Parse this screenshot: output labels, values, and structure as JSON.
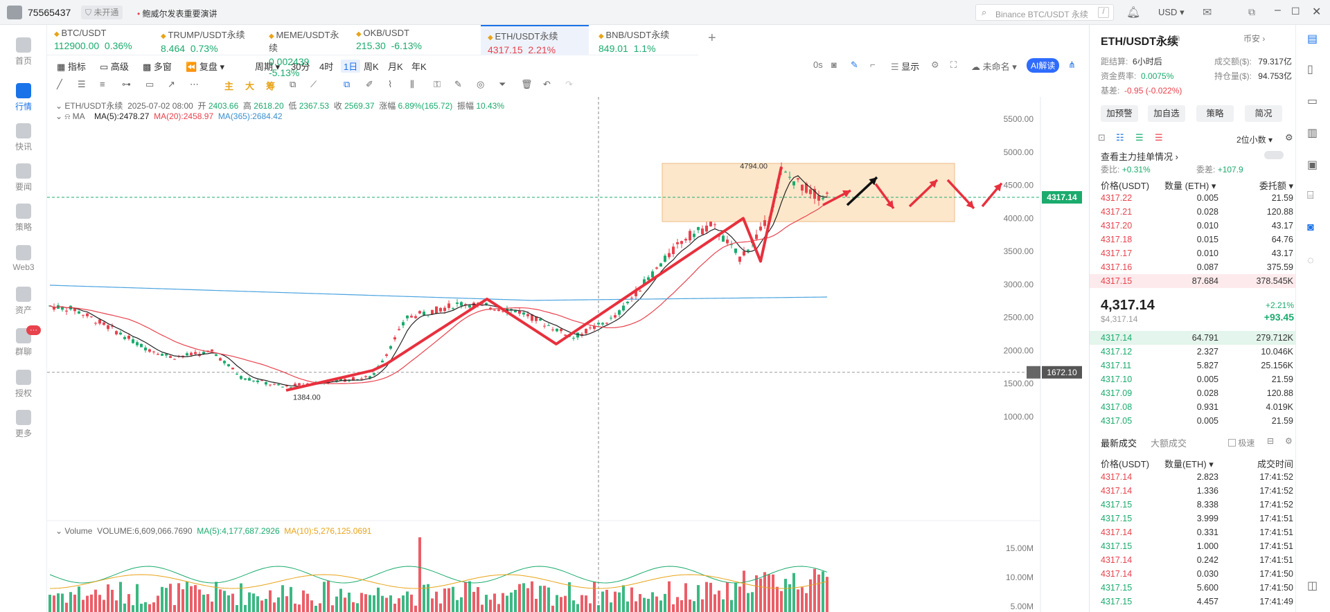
{
  "app": {
    "user_id": "75565437",
    "status": "未开通",
    "notice": "鲍威尔发表重要演讲",
    "search_placeholder": "Binance BTC/USDT 永续",
    "search_shortcut": "/",
    "currency": "USD"
  },
  "nav": [
    {
      "label": "首页",
      "icon": "home-icon"
    },
    {
      "label": "行情",
      "icon": "market-icon"
    },
    {
      "label": "快讯",
      "icon": "news-icon"
    },
    {
      "label": "要闻",
      "icon": "headline-icon"
    },
    {
      "label": "策略",
      "icon": "robot-icon"
    },
    {
      "label": "Web3",
      "icon": "web3-icon"
    },
    {
      "label": "资产",
      "icon": "wallet-icon"
    },
    {
      "label": "群聊",
      "icon": "chat-icon",
      "badge": "···"
    },
    {
      "label": "授权",
      "icon": "auth-icon"
    },
    {
      "label": "更多",
      "icon": "more-icon"
    }
  ],
  "tabs": [
    {
      "name": "BTC/USDT",
      "price": "112900.00",
      "change": "0.36%",
      "dir": "up"
    },
    {
      "name": "TRUMP/USDT永续",
      "price": "8.464",
      "change": "0.73%",
      "dir": "up"
    },
    {
      "name": "MEME/USDT永续",
      "price": "0.002439",
      "change": "-5.13%",
      "dir": "up"
    },
    {
      "name": "OKB/USDT",
      "price": "215.30",
      "change": "-6.13%",
      "dir": "up"
    },
    {
      "name": "ETH/USDT永续",
      "price": "4317.15",
      "change": "2.21%",
      "dir": "down",
      "active": true
    },
    {
      "name": "BNB/USDT永续",
      "price": "849.01",
      "change": "1.1%",
      "dir": "up"
    }
  ],
  "toolbar": {
    "indicator": "指标",
    "advanced": "高级",
    "multi": "多窗",
    "replay": "复盘",
    "period": "周期",
    "intervals": [
      "30分",
      "4时",
      "1日",
      "周K",
      "月K",
      "年K"
    ],
    "active_interval": "1日",
    "countdown": "0s",
    "display": "显示",
    "unnamed": "未命名",
    "ai": "AI解读"
  },
  "drawbar": {
    "labels": [
      "主",
      "大",
      "筹"
    ]
  },
  "legend": {
    "symbol": "ETH/USDT永续",
    "date": "2025-07-02 08:00",
    "open_label": "开",
    "open": "2403.66",
    "high_label": "高",
    "high": "2618.20",
    "low_label": "低",
    "low": "2367.53",
    "close_label": "收",
    "close": "2569.37",
    "chg_label": "涨幅",
    "chg": "6.89%(165.72)",
    "amp_label": "振幅",
    "amp": "10.43%",
    "ma_label": "MA",
    "ma5": "MA(5):2478.27",
    "ma20": "MA(20):2458.97",
    "ma365": "MA(365):2684.42"
  },
  "volume_legend": {
    "label": "Volume",
    "volume": "VOLUME:6,609,066.7690",
    "ma5": "MA(5):4,177,687.2926",
    "ma10": "MA(10):5,276,125.0691"
  },
  "chart_data": {
    "type": "candlestick",
    "price_axis": [
      "5500.00",
      "5000.00",
      "4500.00",
      "4000.00",
      "3500.00",
      "3000.00",
      "2500.00",
      "2000.00",
      "1500.00",
      "1000.00"
    ],
    "ylim": [
      1000,
      5500
    ],
    "volume_axis": [
      "15.00M",
      "10.00M",
      "5.00M"
    ],
    "last_price": "4317.14",
    "crosshair_price": "1672.10",
    "high_label": "4794.00",
    "low_label": "1384.00",
    "colors": {
      "up": "#1aab6d",
      "down": "#e8424d",
      "ma5": "#222222",
      "ma20": "#e8424d",
      "ma365": "#4aa3df",
      "box": "#fde3c3"
    }
  },
  "side": {
    "symbol": "ETH/USDT永续",
    "exchange": "币安",
    "settle_label": "距结算:",
    "settle": "6小时后",
    "turnover_label": "成交额($):",
    "turnover": "79.317亿",
    "funding_label": "资金费率:",
    "funding": "0.0075%",
    "oi_label": "持仓量($):",
    "oi": "94.753亿",
    "basis_label": "基差:",
    "basis": "-0.95 (-0.022%)",
    "buttons": [
      "加预警",
      "加自选",
      "策略",
      "简况"
    ],
    "precision": "2位小数",
    "depth_link": "查看主力挂单情况",
    "ratio_label": "委比:",
    "ratio": "+0.31%",
    "diff_label": "委差:",
    "diff": "+107.9",
    "ob_headers": [
      "价格(USDT)",
      "数量 (ETH)",
      "委托额"
    ],
    "asks": [
      [
        "4317.22",
        "0.005",
        "21.59"
      ],
      [
        "4317.21",
        "0.028",
        "120.88"
      ],
      [
        "4317.20",
        "0.010",
        "43.17"
      ],
      [
        "4317.18",
        "0.015",
        "64.76"
      ],
      [
        "4317.17",
        "0.010",
        "43.17"
      ],
      [
        "4317.16",
        "0.087",
        "375.59"
      ],
      [
        "4317.15",
        "87.684",
        "378.545K"
      ]
    ],
    "mid_price": "4,317.14",
    "mid_usd": "$4,317.14",
    "mid_pct": "+2.21%",
    "mid_chg": "+93.45",
    "bids": [
      [
        "4317.14",
        "64.791",
        "279.712K"
      ],
      [
        "4317.12",
        "2.327",
        "10.046K"
      ],
      [
        "4317.11",
        "5.827",
        "25.156K"
      ],
      [
        "4317.10",
        "0.005",
        "21.59"
      ],
      [
        "4317.09",
        "0.028",
        "120.88"
      ],
      [
        "4317.08",
        "0.931",
        "4.019K"
      ],
      [
        "4317.05",
        "0.005",
        "21.59"
      ]
    ],
    "trades_tab": "最新成交",
    "big_tab": "大额成交",
    "fast": "极速",
    "tr_headers": [
      "价格(USDT)",
      "数量(ETH)",
      "成交时间"
    ],
    "trades": [
      [
        "4317.14",
        "2.823",
        "17:41:52",
        "down"
      ],
      [
        "4317.14",
        "1.336",
        "17:41:52",
        "down"
      ],
      [
        "4317.15",
        "8.338",
        "17:41:52",
        "up"
      ],
      [
        "4317.15",
        "3.999",
        "17:41:51",
        "up"
      ],
      [
        "4317.14",
        "0.331",
        "17:41:51",
        "down"
      ],
      [
        "4317.15",
        "1.000",
        "17:41:51",
        "up"
      ],
      [
        "4317.14",
        "0.242",
        "17:41:51",
        "down"
      ],
      [
        "4317.14",
        "0.030",
        "17:41:50",
        "down"
      ],
      [
        "4317.15",
        "5.600",
        "17:41:50",
        "up"
      ],
      [
        "4317.15",
        "4.457",
        "17:41:49",
        "up"
      ]
    ]
  }
}
